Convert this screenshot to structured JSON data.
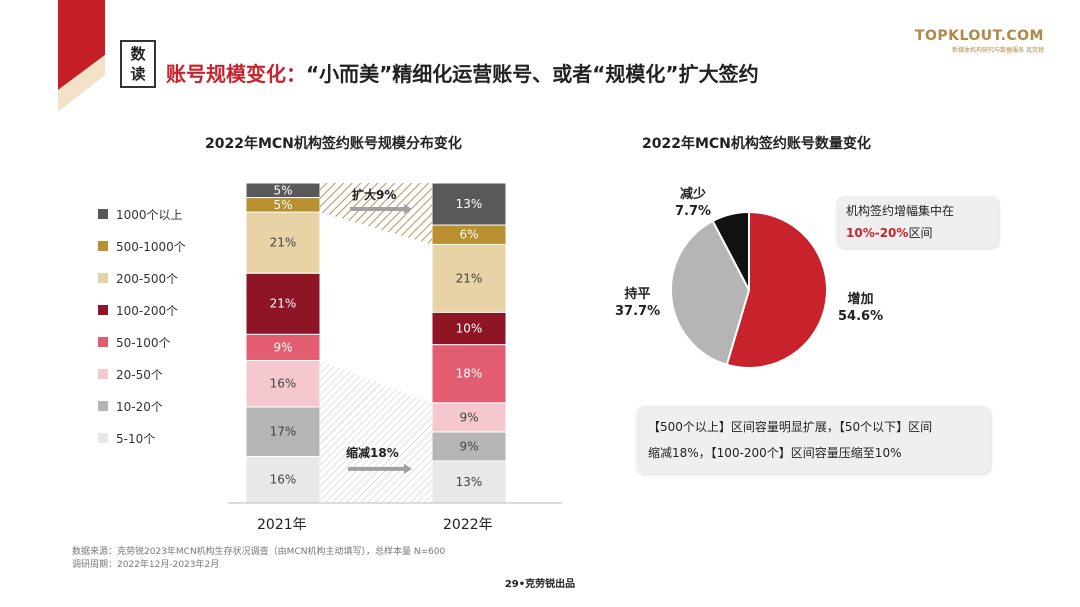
{
  "header": {
    "tag_chars": [
      "数",
      "读"
    ],
    "title_red": "账号规模变化：",
    "title_black": "“小而美”精细化运营账号、或者“规模化”扩大签约",
    "logo_main": "TOPKLOUT.COM",
    "logo_sub": "新媒体机构研究与数据服务  克劳锐"
  },
  "bar_chart_title": "2022年MCN机构签约账号规模分布变化",
  "pie_chart_title": "2022年MCN机构签约账号数量变化",
  "annotations": {
    "expand": "扩大9%",
    "shrink": "缩减18%"
  },
  "callout_top": {
    "line1": "机构签约增幅集中在",
    "highlight": "10%-20%",
    "suffix": "区间"
  },
  "callout_bottom": {
    "line1": "【500个以上】区间容量明显扩展，【50个以下】区间",
    "line2": "缩减18%，【100-200个】区间容量压缩至10%"
  },
  "footer": {
    "source": "数据来源：克劳锐2023年MCN机构生存状况调查（由MCN机构主动填写），总样本量 N=600",
    "period": "调研周期：2022年12月-2023年2月",
    "page": "29•克劳锐出品"
  },
  "colors": {
    "accent_red": "#c8232c",
    "seg_1000plus": "#595959",
    "seg_500_1000": "#b8902f",
    "seg_200_500": "#e8d3a7",
    "seg_100_200": "#8e1525",
    "seg_50_100": "#e35d70",
    "seg_20_50": "#f5c8cf",
    "seg_10_20": "#b5b5b5",
    "seg_5_10": "#e8e8e8",
    "pie_increase": "#c8232c",
    "pie_flat": "#b5b5b5",
    "pie_decrease": "#111111"
  },
  "chart_data": [
    {
      "type": "bar",
      "stacked": true,
      "title": "2022年MCN机构签约账号规模分布变化",
      "categories": [
        "2021年",
        "2022年"
      ],
      "series": [
        {
          "name": "5-10个",
          "values": [
            16,
            13
          ],
          "color": "#e8e8e8"
        },
        {
          "name": "10-20个",
          "values": [
            17,
            9
          ],
          "color": "#b5b5b5"
        },
        {
          "name": "20-50个",
          "values": [
            16,
            9
          ],
          "color": "#f5c8cf"
        },
        {
          "name": "50-100个",
          "values": [
            9,
            18
          ],
          "color": "#e35d70"
        },
        {
          "name": "100-200个",
          "values": [
            21,
            10
          ],
          "color": "#8e1525"
        },
        {
          "name": "200-500个",
          "values": [
            21,
            21
          ],
          "color": "#e8d3a7"
        },
        {
          "name": "500-1000个",
          "values": [
            5,
            6
          ],
          "color": "#b8902f"
        },
        {
          "name": "1000个以上",
          "values": [
            5,
            13
          ],
          "color": "#595959"
        }
      ],
      "value_suffix": "%",
      "legend_order": [
        "1000个以上",
        "500-1000个",
        "200-500个",
        "100-200个",
        "50-100个",
        "20-50个",
        "10-20个",
        "5-10个"
      ],
      "legend": "left"
    },
    {
      "type": "pie",
      "title": "2022年MCN机构签约账号数量变化",
      "slices": [
        {
          "label": "增加",
          "value": 54.6,
          "color": "#c8232c"
        },
        {
          "label": "持平",
          "value": 37.7,
          "color": "#b5b5b5"
        },
        {
          "label": "减少",
          "value": 7.7,
          "color": "#111111"
        }
      ],
      "value_suffix": "%"
    }
  ]
}
